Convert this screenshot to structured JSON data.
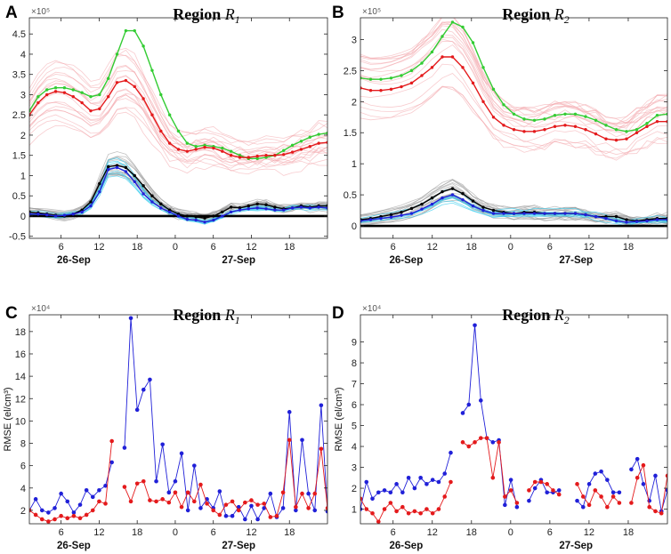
{
  "colors": {
    "red": "#e41a1c",
    "green": "#33cc33",
    "blue": "#2020d8",
    "black": "#000000",
    "cyan": "#33ccee",
    "gray": "#9a9a9a",
    "pink": "#f2a3a8"
  },
  "chart_data": [
    {
      "panel": "A",
      "type": "line",
      "title_prefix": "Region",
      "title_math": "R",
      "title_sub": "1",
      "scale_label": "×10⁵",
      "ylim": [
        -0.55,
        4.9
      ],
      "yticks": [
        -0.5,
        0,
        0.5,
        1,
        1.5,
        2,
        2.5,
        3,
        3.5,
        4,
        4.5
      ],
      "xlim": [
        0,
        47
      ],
      "xticks": [
        {
          "x": 5,
          "label": "6"
        },
        {
          "x": 11,
          "label": "12"
        },
        {
          "x": 17,
          "label": "18"
        },
        {
          "x": 23,
          "label": "0"
        },
        {
          "x": 29,
          "label": "6"
        },
        {
          "x": 35,
          "label": "12"
        },
        {
          "x": 41,
          "label": "18"
        }
      ],
      "date_labels": [
        {
          "x": 7,
          "label": "26-Sep"
        },
        {
          "x": 33,
          "label": "27-Sep"
        }
      ],
      "zero_line": true,
      "series": [
        {
          "name": "green",
          "color": "green",
          "marker": true,
          "values": [
            2.6,
            2.95,
            3.12,
            3.17,
            3.17,
            3.12,
            3.05,
            2.95,
            3.0,
            3.4,
            4.0,
            4.58,
            4.58,
            4.2,
            3.6,
            3.0,
            2.5,
            2.1,
            1.8,
            1.72,
            1.75,
            1.72,
            1.68,
            1.6,
            1.5,
            1.42,
            1.42,
            1.45,
            1.5,
            1.62,
            1.75,
            1.85,
            1.95,
            2.02,
            2.05
          ]
        },
        {
          "name": "red",
          "color": "red",
          "marker": true,
          "values": [
            2.5,
            2.8,
            3.0,
            3.08,
            3.05,
            2.95,
            2.8,
            2.6,
            2.65,
            2.95,
            3.3,
            3.35,
            3.2,
            2.9,
            2.5,
            2.1,
            1.8,
            1.65,
            1.6,
            1.65,
            1.7,
            1.68,
            1.6,
            1.5,
            1.45,
            1.45,
            1.48,
            1.5,
            1.5,
            1.52,
            1.58,
            1.65,
            1.72,
            1.8,
            1.82
          ]
        },
        {
          "name": "black",
          "color": "black",
          "marker": true,
          "values": [
            0.1,
            0.08,
            0.05,
            0.02,
            0.0,
            0.05,
            0.15,
            0.35,
            0.8,
            1.22,
            1.25,
            1.2,
            1.0,
            0.75,
            0.5,
            0.3,
            0.15,
            0.05,
            0.0,
            -0.02,
            -0.05,
            0.0,
            0.1,
            0.22,
            0.2,
            0.25,
            0.3,
            0.28,
            0.22,
            0.18,
            0.2,
            0.25,
            0.22,
            0.25,
            0.25
          ]
        },
        {
          "name": "blue",
          "color": "blue",
          "marker": true,
          "values": [
            0.05,
            0.05,
            0.03,
            0.0,
            0.02,
            0.05,
            0.1,
            0.25,
            0.6,
            1.15,
            1.2,
            1.1,
            0.85,
            0.55,
            0.35,
            0.2,
            0.1,
            0.0,
            -0.08,
            -0.1,
            -0.15,
            -0.1,
            0.0,
            0.1,
            0.15,
            0.18,
            0.2,
            0.18,
            0.15,
            0.15,
            0.2,
            0.22,
            0.2,
            0.22,
            0.2
          ]
        }
      ]
    },
    {
      "panel": "B",
      "type": "line",
      "title_prefix": "Region",
      "title_math": "R",
      "title_sub": "2",
      "scale_label": "×10⁵",
      "ylim": [
        -0.2,
        3.35
      ],
      "yticks": [
        0,
        0.5,
        1,
        1.5,
        2,
        2.5,
        3
      ],
      "xlim": [
        0,
        47
      ],
      "xticks": [
        {
          "x": 5,
          "label": "6"
        },
        {
          "x": 11,
          "label": "12"
        },
        {
          "x": 17,
          "label": "18"
        },
        {
          "x": 23,
          "label": "0"
        },
        {
          "x": 29,
          "label": "6"
        },
        {
          "x": 35,
          "label": "12"
        },
        {
          "x": 41,
          "label": "18"
        }
      ],
      "date_labels": [
        {
          "x": 7,
          "label": "26-Sep"
        },
        {
          "x": 33,
          "label": "27-Sep"
        }
      ],
      "zero_line": true,
      "series": [
        {
          "name": "green",
          "color": "green",
          "marker": true,
          "values": [
            2.38,
            2.36,
            2.36,
            2.38,
            2.42,
            2.5,
            2.62,
            2.8,
            3.05,
            3.28,
            3.2,
            2.95,
            2.55,
            2.2,
            1.95,
            1.8,
            1.72,
            1.7,
            1.72,
            1.78,
            1.8,
            1.8,
            1.76,
            1.7,
            1.62,
            1.55,
            1.52,
            1.55,
            1.65,
            1.78,
            1.8
          ]
        },
        {
          "name": "red",
          "color": "red",
          "marker": true,
          "values": [
            2.22,
            2.18,
            2.18,
            2.2,
            2.24,
            2.3,
            2.42,
            2.55,
            2.72,
            2.72,
            2.55,
            2.3,
            2.0,
            1.75,
            1.62,
            1.55,
            1.52,
            1.52,
            1.55,
            1.6,
            1.62,
            1.6,
            1.55,
            1.48,
            1.4,
            1.38,
            1.4,
            1.5,
            1.6,
            1.68,
            1.68
          ]
        },
        {
          "name": "black",
          "color": "black",
          "marker": true,
          "values": [
            0.1,
            0.12,
            0.15,
            0.18,
            0.22,
            0.28,
            0.35,
            0.45,
            0.55,
            0.6,
            0.52,
            0.4,
            0.3,
            0.25,
            0.22,
            0.2,
            0.22,
            0.22,
            0.2,
            0.2,
            0.2,
            0.2,
            0.18,
            0.15,
            0.15,
            0.15,
            0.1,
            0.08,
            0.1,
            0.12,
            0.12
          ]
        },
        {
          "name": "blue",
          "color": "blue",
          "marker": true,
          "values": [
            0.08,
            0.1,
            0.12,
            0.14,
            0.17,
            0.2,
            0.27,
            0.35,
            0.45,
            0.5,
            0.42,
            0.32,
            0.25,
            0.2,
            0.2,
            0.2,
            0.2,
            0.2,
            0.2,
            0.2,
            0.2,
            0.2,
            0.18,
            0.15,
            0.12,
            0.08,
            0.06,
            0.07,
            0.08,
            0.1,
            0.1
          ]
        }
      ]
    },
    {
      "panel": "C",
      "type": "line",
      "title_prefix": "Region",
      "title_math": "R",
      "title_sub": "1",
      "scale_label": "×10⁴",
      "ylabel": "RMSE (el/cm³)",
      "ylim": [
        0.8,
        19.5
      ],
      "yticks": [
        2,
        4,
        6,
        8,
        10,
        12,
        14,
        16,
        18
      ],
      "xlim": [
        0,
        47
      ],
      "xticks": [
        {
          "x": 5,
          "label": "6"
        },
        {
          "x": 11,
          "label": "12"
        },
        {
          "x": 17,
          "label": "18"
        },
        {
          "x": 23,
          "label": "0"
        },
        {
          "x": 29,
          "label": "6"
        },
        {
          "x": 35,
          "label": "12"
        },
        {
          "x": 41,
          "label": "18"
        }
      ],
      "date_labels": [
        {
          "x": 7,
          "label": "26-Sep"
        },
        {
          "x": 33,
          "label": "27-Sep"
        }
      ],
      "zero_line": false,
      "series": [
        {
          "name": "blue",
          "color": "blue",
          "marker": true,
          "values": [
            2.0,
            3.0,
            2.0,
            1.8,
            2.2,
            3.5,
            2.8,
            1.8,
            2.5,
            3.8,
            3.2,
            3.8,
            4.2,
            6.3,
            null,
            7.6,
            19.2,
            11.0,
            12.8,
            13.7,
            4.6,
            7.9,
            3.6,
            4.6,
            7.1,
            2.0,
            6.0,
            2.2,
            3.0,
            2.2,
            3.7,
            1.5,
            1.5,
            2.3,
            1.2,
            2.4,
            1.2,
            2.2,
            3.5,
            1.4,
            2.2,
            10.8,
            2.0,
            8.3,
            3.5,
            2.0,
            11.4,
            1.9
          ]
        },
        {
          "name": "red",
          "color": "red",
          "marker": true,
          "values": [
            2.0,
            1.6,
            1.2,
            1.0,
            1.2,
            1.5,
            1.3,
            1.5,
            1.3,
            1.6,
            2.0,
            2.8,
            2.6,
            8.2,
            null,
            4.1,
            2.8,
            4.4,
            4.6,
            2.9,
            2.8,
            3.0,
            2.7,
            3.6,
            2.3,
            3.6,
            2.8,
            4.3,
            2.6,
            2.0,
            1.6,
            2.5,
            2.8,
            2.0,
            2.7,
            2.9,
            2.5,
            2.6,
            1.4,
            1.5,
            3.6,
            8.3,
            2.3,
            3.5,
            2.2,
            3.5,
            7.5,
            2.2
          ]
        }
      ]
    },
    {
      "panel": "D",
      "type": "line",
      "title_prefix": "Region",
      "title_math": "R",
      "title_sub": "2",
      "scale_label": "×10⁴",
      "ylabel": "RMSE (el/cm³)",
      "ylim": [
        0.3,
        10.3
      ],
      "yticks": [
        1,
        2,
        3,
        4,
        5,
        6,
        7,
        8,
        9
      ],
      "xlim": [
        0,
        47
      ],
      "xticks": [
        {
          "x": 5,
          "label": "6"
        },
        {
          "x": 11,
          "label": "12"
        },
        {
          "x": 17,
          "label": "18"
        },
        {
          "x": 23,
          "label": "0"
        },
        {
          "x": 29,
          "label": "6"
        },
        {
          "x": 35,
          "label": "12"
        },
        {
          "x": 41,
          "label": "18"
        }
      ],
      "date_labels": [
        {
          "x": 7,
          "label": "26-Sep"
        },
        {
          "x": 33,
          "label": "27-Sep"
        }
      ],
      "zero_line": false,
      "series": [
        {
          "name": "blue",
          "color": "blue",
          "marker": true,
          "values": [
            1.0,
            2.3,
            1.5,
            1.8,
            1.9,
            1.8,
            2.2,
            1.8,
            2.5,
            2.0,
            2.5,
            2.2,
            2.4,
            2.3,
            2.7,
            3.7,
            null,
            5.6,
            6.0,
            9.8,
            6.2,
            4.4,
            4.2,
            4.3,
            1.2,
            2.4,
            1.1,
            null,
            1.4,
            2.0,
            2.4,
            1.8,
            1.8,
            1.9,
            null,
            null,
            1.4,
            1.1,
            2.2,
            2.7,
            2.8,
            2.4,
            1.8,
            1.8,
            null,
            2.9,
            3.4,
            2.2,
            1.4,
            2.6,
            0.9,
            1.9
          ]
        },
        {
          "name": "red",
          "color": "red",
          "marker": true,
          "values": [
            1.5,
            1.0,
            0.8,
            0.4,
            1.0,
            1.3,
            0.9,
            1.1,
            0.8,
            0.9,
            0.8,
            1.0,
            0.8,
            1.0,
            1.6,
            2.3,
            null,
            4.2,
            4.0,
            4.2,
            4.4,
            4.4,
            2.5,
            4.2,
            1.6,
            1.9,
            1.3,
            null,
            1.9,
            2.3,
            2.3,
            2.2,
            1.9,
            1.7,
            null,
            null,
            2.2,
            1.6,
            1.2,
            1.9,
            1.6,
            1.1,
            1.6,
            1.3,
            null,
            1.3,
            2.5,
            3.1,
            1.1,
            0.9,
            0.8,
            2.6
          ]
        }
      ]
    }
  ]
}
